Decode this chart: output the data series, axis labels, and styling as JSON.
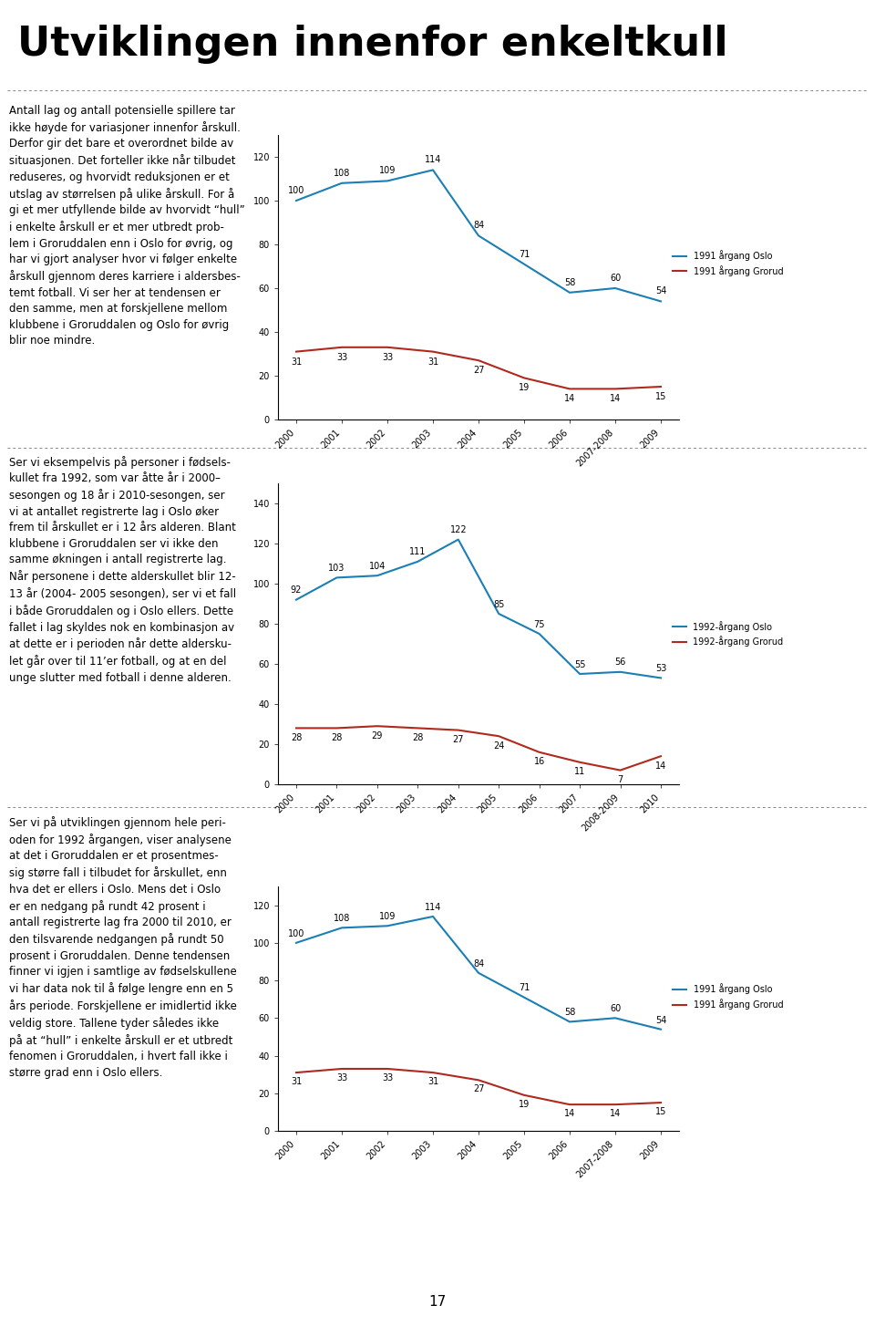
{
  "chart1": {
    "x_labels": [
      "2000",
      "2001",
      "2002",
      "2003",
      "2004",
      "2005",
      "2006",
      "2007-2008",
      "2009"
    ],
    "oslo": [
      100,
      108,
      109,
      114,
      84,
      71,
      58,
      60,
      54
    ],
    "grorud": [
      31,
      33,
      33,
      31,
      27,
      19,
      14,
      14,
      15
    ],
    "legend_oslo": "1991 årgang Oslo",
    "legend_grorud": "1991 årgang Grorud",
    "ylim": [
      0,
      130
    ],
    "yticks": [
      0,
      20,
      40,
      60,
      80,
      100,
      120
    ],
    "color_oslo": "#1B7EB5",
    "color_grorud": "#B0291E"
  },
  "chart2": {
    "x_labels": [
      "2000",
      "2001",
      "2002",
      "2003",
      "2004",
      "2005",
      "2006",
      "2007",
      "2008-2009",
      "2010"
    ],
    "oslo": [
      92,
      103,
      104,
      111,
      122,
      85,
      75,
      55,
      56,
      53
    ],
    "grorud": [
      28,
      28,
      29,
      28,
      27,
      24,
      16,
      11,
      7,
      14
    ],
    "legend_oslo": "1992-årgang Oslo",
    "legend_grorud": "1992-årgang Grorud",
    "ylim": [
      0,
      150
    ],
    "yticks": [
      0,
      20,
      40,
      60,
      80,
      100,
      120,
      140
    ],
    "color_oslo": "#1B7EB5",
    "color_grorud": "#B0291E"
  },
  "chart3": {
    "x_labels": [
      "2000",
      "2001",
      "2002",
      "2003",
      "2004",
      "2005",
      "2006",
      "2007-2008",
      "2009"
    ],
    "oslo": [
      100,
      108,
      109,
      114,
      84,
      71,
      58,
      60,
      54
    ],
    "grorud": [
      31,
      33,
      33,
      31,
      27,
      19,
      14,
      14,
      15
    ],
    "legend_oslo": "1991 årgang Oslo",
    "legend_grorud": "1991 årgang Grorud",
    "ylim": [
      0,
      130
    ],
    "yticks": [
      0,
      20,
      40,
      60,
      80,
      100,
      120
    ],
    "color_oslo": "#1B7EB5",
    "color_grorud": "#B0291E"
  },
  "page_title": "Utviklingen innenfor enkeltkull",
  "background_color": "#FFFFFF",
  "text_color": "#000000",
  "body_text1": "Antall lag og antall potensielle spillere tar\nikke høyde for variasjoner innenfor årskull.\nDerfor gir det bare et overordnet bilde av\nsituasjonen. Det forteller ikke når tilbudet\nreduseres, og hvorvidt reduksjonen er et\nutslag av størrelsen på ulike årskull. For å\ngi et mer utfyllende bilde av hvorvidt “hull”\ni enkelte årskull er et mer utbredt prob-\nlem i Groruddalen enn i Oslo for øvrig, og\nhar vi gjort analyser hvor vi følger enkelte\nårskull gjennom deres karriere i aldersbes-\ntemt fotball. Vi ser her at tendensen er\nden samme, men at forskjellene mellom\nklubbene i Groruddalen og Oslo for øvrig\nblir noe mindre.",
  "body_text2": "Ser vi eksempelvis på personer i fødsels-\nkullet fra 1992, som var åtte år i 2000–\nsesongen og 18 år i 2010-sesongen, ser\nvi at antallet registrerte lag i Oslo øker\nfrem til årskullet er i 12 års alderen. Blant\nklubbene i Groruddalen ser vi ikke den\nsamme økningen i antall registrerte lag.\nNår personene i dette alderskullet blir 12-\n13 år (2004- 2005 sesongen), ser vi et fall\ni både Groruddalen og i Oslo ellers. Dette\nfallet i lag skyldes nok en kombinasjon av\nat dette er i perioden når dette aldersku-\nlet går over til 11’er fotball, og at en del\nunge slutter med fotball i denne alderen.\nSer vi på utviklingen gjennom hele peri-\noden for 1992 årgangen, viser analysene\nat det i Groruddalen er et prosentmes-\nsig større fall i tilbudet for årskullet, enn\nhva det er ellers i Oslo. Mens det i Oslo\ner en nedgang på rundt 42 prosent i\nantall registrerte lag fra 2000 til 2010, er\nden tilsvarende nedgangen på rundt 50\nprosent i Groruddalen. Denne tendensen\nfinner vi igjen i samtlige av fødselskullene\nvi har data nok til å følge lengre enn en 5\nårs periode. Forskjellene er imidlertid ikke\nveldig store. Tallene tyder således ikke\npå at “hull” i enkelte årskull er et utbredt\nfenomen i Groruddalen, i hvert fall ikke i\nstørre grad enn i Oslo ellers.",
  "page_number": "17"
}
